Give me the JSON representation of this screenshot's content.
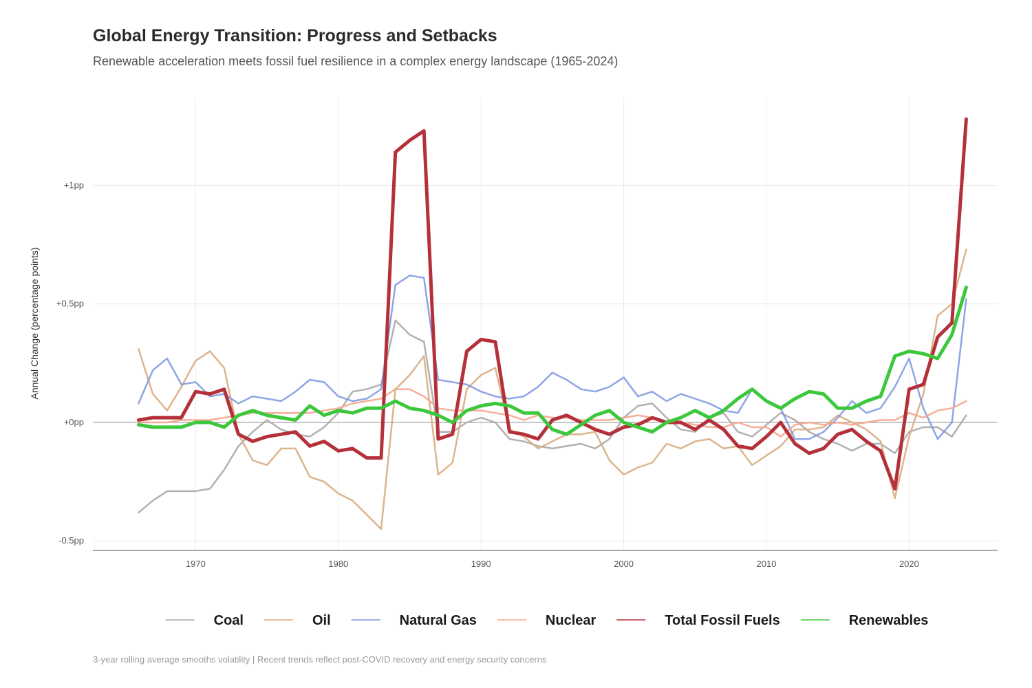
{
  "chart_data": {
    "type": "line",
    "title": "Global Energy Transition: Progress and Setbacks",
    "subtitle": "Renewable acceleration meets fossil fuel resilience in a complex energy landscape (1965-2024)",
    "caption": "3-year rolling average smooths volatility | Recent trends reflect post-COVID recovery and energy security concerns",
    "ylabel": "Annual Change (percentage points)",
    "xlabel": "",
    "xlim": [
      1962.8,
      2026.2
    ],
    "ylim": [
      -0.54,
      1.37
    ],
    "xticks": [
      1970,
      1980,
      1990,
      2000,
      2010,
      2020
    ],
    "xtick_labels": [
      "1970",
      "1980",
      "1990",
      "2000",
      "2010",
      "2020"
    ],
    "yticks": [
      -0.5,
      0,
      0.5,
      1
    ],
    "ytick_labels": [
      "-0.5pp",
      "+0pp",
      "+0.5pp",
      "+1pp"
    ],
    "grid": true,
    "zero_line": true,
    "legend_position": "bottom",
    "x": [
      1966,
      1967,
      1968,
      1969,
      1970,
      1971,
      1972,
      1973,
      1974,
      1975,
      1976,
      1977,
      1978,
      1979,
      1980,
      1981,
      1982,
      1983,
      1984,
      1985,
      1986,
      1987,
      1988,
      1989,
      1990,
      1991,
      1992,
      1993,
      1994,
      1995,
      1996,
      1997,
      1998,
      1999,
      2000,
      2001,
      2002,
      2003,
      2004,
      2005,
      2006,
      2007,
      2008,
      2009,
      2010,
      2011,
      2012,
      2013,
      2014,
      2015,
      2016,
      2017,
      2018,
      2019,
      2020,
      2021,
      2022,
      2023,
      2024
    ],
    "series": [
      {
        "name": "Coal",
        "color": "#a9a9a9",
        "width": 2.5,
        "opacity": 0.9,
        "values": [
          -0.38,
          -0.33,
          -0.29,
          -0.29,
          -0.29,
          -0.28,
          -0.2,
          -0.1,
          -0.04,
          0.01,
          -0.03,
          -0.05,
          -0.06,
          -0.02,
          0.04,
          0.13,
          0.14,
          0.16,
          0.43,
          0.37,
          0.34,
          -0.04,
          -0.04,
          0.0,
          0.02,
          0.0,
          -0.07,
          -0.08,
          -0.1,
          -0.11,
          -0.1,
          -0.09,
          -0.11,
          -0.07,
          0.02,
          0.07,
          0.08,
          0.02,
          -0.03,
          -0.04,
          0.02,
          0.04,
          -0.04,
          -0.06,
          -0.01,
          0.04,
          0.01,
          -0.04,
          -0.07,
          -0.09,
          -0.12,
          -0.09,
          -0.09,
          -0.13,
          -0.04,
          -0.02,
          -0.02,
          -0.06,
          0.03
        ]
      },
      {
        "name": "Oil",
        "color": "#d9ac80",
        "width": 2.5,
        "opacity": 0.9,
        "values": [
          0.31,
          0.12,
          0.05,
          0.15,
          0.26,
          0.3,
          0.23,
          -0.05,
          -0.16,
          -0.18,
          -0.11,
          -0.11,
          -0.23,
          -0.25,
          -0.3,
          -0.33,
          -0.39,
          -0.45,
          0.14,
          0.2,
          0.28,
          -0.22,
          -0.17,
          0.14,
          0.2,
          0.23,
          -0.03,
          -0.06,
          -0.11,
          -0.08,
          -0.05,
          -0.05,
          -0.04,
          -0.16,
          -0.22,
          -0.19,
          -0.17,
          -0.09,
          -0.11,
          -0.08,
          -0.07,
          -0.11,
          -0.1,
          -0.18,
          -0.14,
          -0.1,
          -0.03,
          -0.03,
          -0.02,
          0.03,
          0.0,
          -0.03,
          -0.08,
          -0.32,
          -0.06,
          0.12,
          0.45,
          0.5,
          0.73
        ]
      },
      {
        "name": "Natural Gas",
        "color": "#7b95e0",
        "width": 2.5,
        "opacity": 0.85,
        "values": [
          0.08,
          0.22,
          0.27,
          0.16,
          0.17,
          0.11,
          0.12,
          0.08,
          0.11,
          0.1,
          0.09,
          0.13,
          0.18,
          0.17,
          0.11,
          0.09,
          0.1,
          0.14,
          0.58,
          0.62,
          0.61,
          0.18,
          0.17,
          0.16,
          0.13,
          0.11,
          0.1,
          0.11,
          0.15,
          0.21,
          0.18,
          0.14,
          0.13,
          0.15,
          0.19,
          0.11,
          0.13,
          0.09,
          0.12,
          0.1,
          0.08,
          0.05,
          0.04,
          0.14,
          0.09,
          0.06,
          -0.07,
          -0.07,
          -0.04,
          0.02,
          0.09,
          0.04,
          0.06,
          0.15,
          0.27,
          0.06,
          -0.07,
          0.0,
          0.52
        ]
      },
      {
        "name": "Nuclear",
        "color": "#f5a58c",
        "width": 2.5,
        "opacity": 0.9,
        "values": [
          0.0,
          0.0,
          0.0,
          0.01,
          0.01,
          0.01,
          0.02,
          0.03,
          0.04,
          0.04,
          0.04,
          0.04,
          0.04,
          0.05,
          0.06,
          0.08,
          0.09,
          0.1,
          0.14,
          0.14,
          0.11,
          0.06,
          0.05,
          0.05,
          0.05,
          0.04,
          0.03,
          0.01,
          0.03,
          0.02,
          0.02,
          0.01,
          0.01,
          0.01,
          0.02,
          0.03,
          0.02,
          0.0,
          0.0,
          -0.01,
          -0.02,
          -0.02,
          0.0,
          -0.02,
          -0.02,
          -0.06,
          -0.01,
          0.0,
          -0.01,
          0.0,
          -0.01,
          0.0,
          0.01,
          0.01,
          0.04,
          0.02,
          0.05,
          0.06,
          0.09
        ]
      },
      {
        "name": "Total Fossil Fuels",
        "color": "#b5313a",
        "width": 5,
        "opacity": 1,
        "values": [
          0.01,
          0.02,
          0.02,
          0.02,
          0.13,
          0.12,
          0.14,
          -0.05,
          -0.08,
          -0.06,
          -0.05,
          -0.04,
          -0.1,
          -0.08,
          -0.12,
          -0.11,
          -0.15,
          -0.15,
          1.14,
          1.19,
          1.23,
          -0.07,
          -0.05,
          0.3,
          0.35,
          0.34,
          -0.04,
          -0.05,
          -0.07,
          0.01,
          0.03,
          0.0,
          -0.03,
          -0.05,
          -0.02,
          -0.01,
          0.02,
          0.0,
          0.0,
          -0.03,
          0.01,
          -0.03,
          -0.1,
          -0.11,
          -0.06,
          0.0,
          -0.09,
          -0.13,
          -0.11,
          -0.05,
          -0.03,
          -0.08,
          -0.12,
          -0.28,
          0.14,
          0.16,
          0.36,
          0.42,
          1.28
        ]
      },
      {
        "name": "Renewables",
        "color": "#3dc73d",
        "width": 5,
        "opacity": 1,
        "values": [
          -0.01,
          -0.02,
          -0.02,
          -0.02,
          0.0,
          0.0,
          -0.02,
          0.03,
          0.05,
          0.03,
          0.02,
          0.01,
          0.07,
          0.03,
          0.05,
          0.04,
          0.06,
          0.06,
          0.09,
          0.06,
          0.05,
          0.03,
          0.0,
          0.05,
          0.07,
          0.08,
          0.07,
          0.04,
          0.04,
          -0.03,
          -0.05,
          -0.01,
          0.03,
          0.05,
          0.0,
          -0.02,
          -0.04,
          0.0,
          0.02,
          0.05,
          0.02,
          0.05,
          0.1,
          0.14,
          0.09,
          0.06,
          0.1,
          0.13,
          0.12,
          0.06,
          0.06,
          0.09,
          0.11,
          0.28,
          0.3,
          0.29,
          0.27,
          0.37,
          0.57
        ]
      }
    ]
  }
}
